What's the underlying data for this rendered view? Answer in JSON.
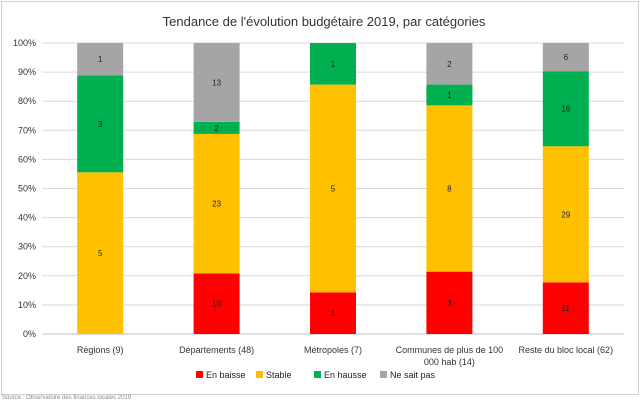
{
  "chart_data": {
    "type": "bar",
    "stacked": true,
    "percent": true,
    "title": "Tendance de l'évolution budgétaire 2019, par catégories",
    "xlabel": "",
    "ylabel": "",
    "ylim": [
      0,
      100
    ],
    "y_ticks": [
      "0%",
      "10%",
      "20%",
      "30%",
      "40%",
      "50%",
      "60%",
      "70%",
      "80%",
      "90%",
      "100%"
    ],
    "categories": [
      [
        "Régions (9)"
      ],
      [
        "Départements (48)"
      ],
      [
        "Métropoles (7)"
      ],
      [
        "Communes de plus de 100",
        "000 hab (14)"
      ],
      [
        "Reste du bloc local (62)"
      ]
    ],
    "series": [
      {
        "name": "En baisse",
        "color": "#ff0000",
        "values": [
          0,
          10,
          1,
          3,
          11
        ]
      },
      {
        "name": "Stable",
        "color": "#ffc000",
        "values": [
          5,
          23,
          5,
          8,
          29
        ]
      },
      {
        "name": "En hausse",
        "color": "#00b050",
        "values": [
          3,
          2,
          1,
          1,
          16
        ]
      },
      {
        "name": "Ne sait pas",
        "color": "#a5a5a5",
        "values": [
          1,
          13,
          0,
          2,
          6
        ]
      }
    ],
    "legend_position": "bottom",
    "grid": true
  },
  "footer": "Source : Observatoire des finances locales 2019"
}
